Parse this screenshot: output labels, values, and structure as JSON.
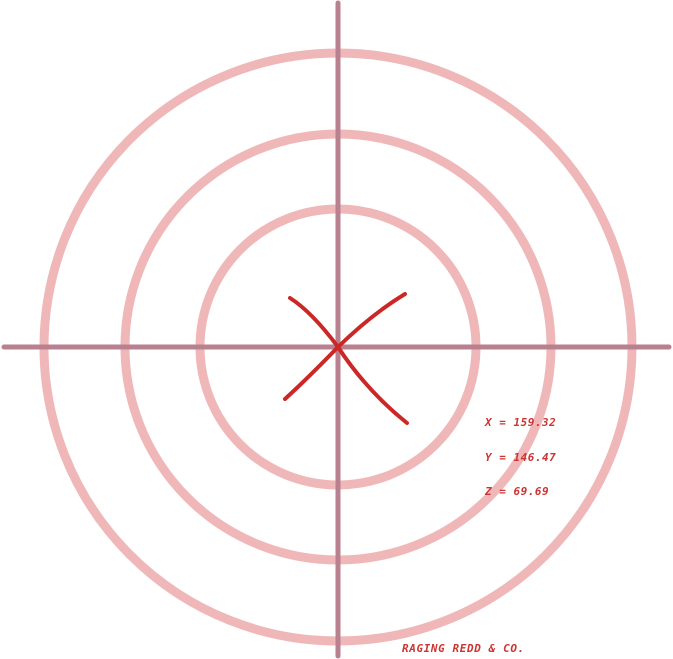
{
  "readout": {
    "x_label": "X = 159.32",
    "y_label": "Y = 146.47",
    "z_label": "Z = 69.69"
  },
  "brand": {
    "text": "RAGING REDD & CO."
  },
  "colors": {
    "ring": "#f0b7b9",
    "crosshair": "#b9818f",
    "mark": "#cc2727",
    "text": "#cc3333"
  },
  "icons": {
    "center_mark": "x-mark-icon"
  }
}
